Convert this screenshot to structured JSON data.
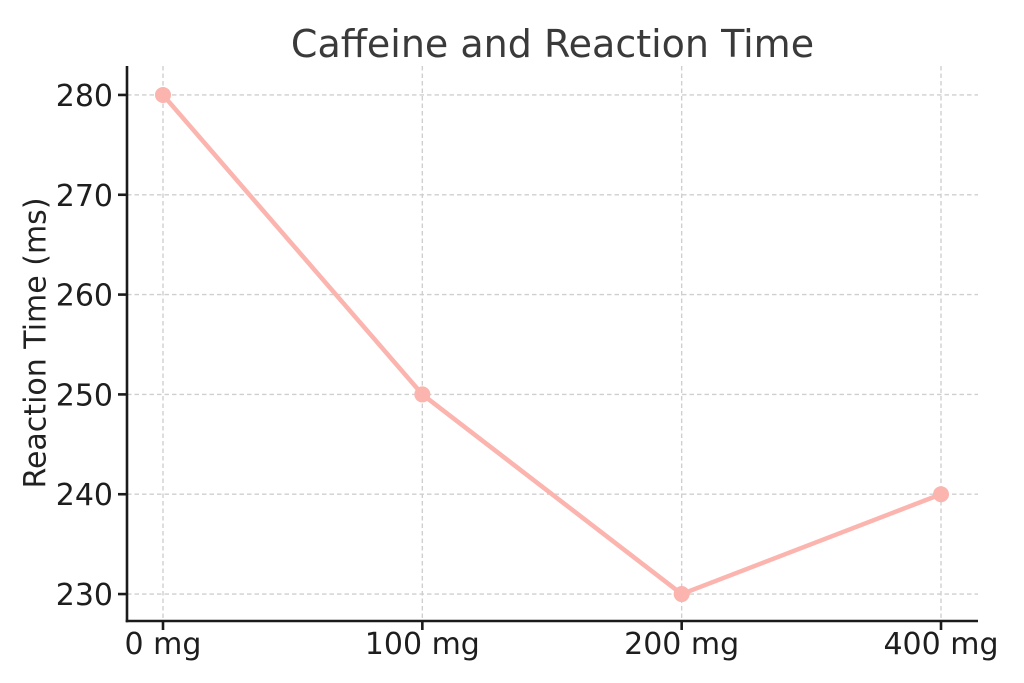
{
  "chart_data": {
    "type": "line",
    "title": "Caffeine and Reaction Time",
    "xlabel": "",
    "ylabel": "Reaction Time (ms)",
    "categories": [
      "0 mg",
      "100 mg",
      "200 mg",
      "400 mg"
    ],
    "series": [
      {
        "name": "Reaction Time",
        "values": [
          280,
          250,
          230,
          240
        ]
      }
    ],
    "yticks": [
      230,
      240,
      250,
      260,
      270,
      280
    ],
    "ylim": [
      227.3,
      282.9
    ],
    "grid": true,
    "grid_style": "dashed",
    "legend_position": "none",
    "marker": "circle",
    "colors": {
      "line": "#FBB4AE",
      "marker": "#FBB4AE",
      "grid": "#CFCFCF",
      "axis": "#1B1B1B",
      "tick_label": "#1E1E1E",
      "title": "#3A3A3A",
      "background": "#FFFFFF"
    }
  }
}
